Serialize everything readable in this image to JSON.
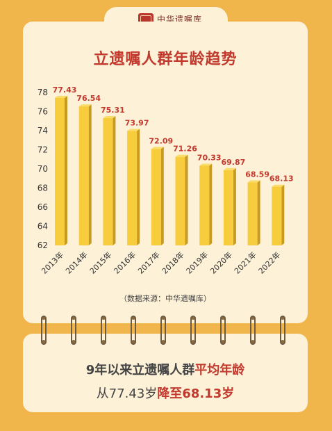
{
  "header": {
    "logo_text": "中华遗嘱库"
  },
  "chart_data": {
    "type": "bar",
    "title": "立遗嘱人群年龄趋势",
    "categories": [
      "2013年",
      "2014年",
      "2015年",
      "2016年",
      "2017年",
      "2018年",
      "2019年",
      "2020年",
      "2021年",
      "2022年"
    ],
    "values": [
      77.43,
      76.54,
      75.31,
      73.97,
      72.09,
      71.26,
      70.33,
      69.87,
      68.59,
      68.13
    ],
    "value_labels": [
      "77.43",
      "76.54",
      "75.31",
      "73.97",
      "72.09",
      "71.26",
      "70.33",
      "69.87",
      "68.59",
      "68.13"
    ],
    "yticks": [
      "62",
      "64",
      "66",
      "68",
      "70",
      "72",
      "74",
      "76",
      "78"
    ],
    "ylim": [
      62,
      78
    ],
    "xlabel": "",
    "ylabel": "",
    "grid": false,
    "bar_color": "#F7CC3D",
    "label_color": "#C23A2E"
  },
  "source": "（数据来源：中华遗嘱库）",
  "summary": {
    "line1_plain": "9年以来立遗嘱人群",
    "line1_highlight": "平均年龄",
    "line2_plain": "从77.43岁",
    "line2_highlight": "降至68.13岁"
  }
}
